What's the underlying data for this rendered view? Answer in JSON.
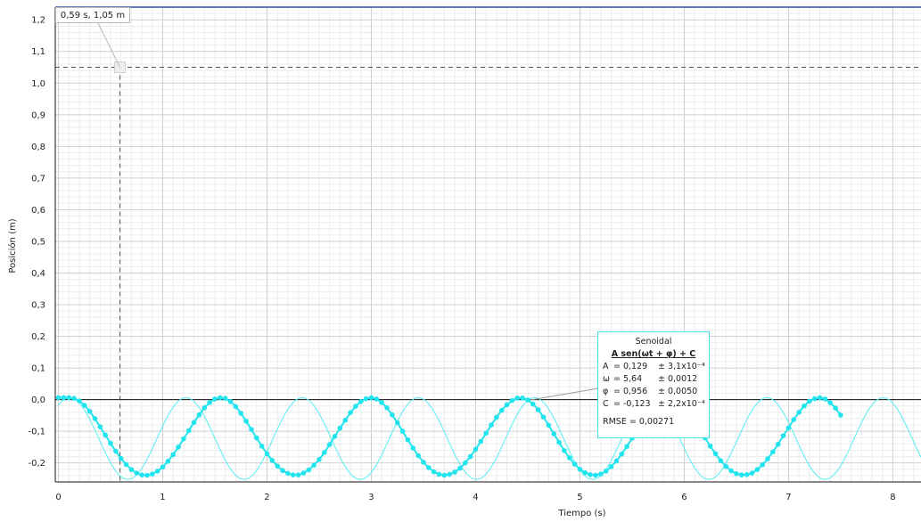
{
  "chart_data": {
    "type": "scatter",
    "xlabel": "Tiempo (s)",
    "ylabel": "Posición (m)",
    "xlim": [
      -0.03,
      8.27
    ],
    "ylim": [
      -0.26,
      1.24
    ],
    "x_ticks": [
      "0",
      "1",
      "2",
      "3",
      "4",
      "5",
      "6",
      "7",
      "8"
    ],
    "y_ticks": [
      "1,2",
      "1,1",
      "1,0",
      "0,9",
      "0,8",
      "0,7",
      "0,6",
      "0,5",
      "0,4",
      "0,3",
      "0,2",
      "0,1",
      "0,0",
      "-0,1",
      "-0,2"
    ],
    "grid": true,
    "colors": {
      "series": "#22e4ee",
      "fit_line": "#55eef4",
      "grid_major": "#cfcfcf",
      "grid_minor": "#ececec",
      "crosshair": "#555555"
    },
    "series": [
      {
        "x_start": 0.0,
        "x_step": 0.05,
        "values": [
          0.006,
          0.006,
          0.006,
          0.004,
          -0.004,
          -0.018,
          -0.037,
          -0.06,
          -0.086,
          -0.112,
          -0.138,
          -0.163,
          -0.186,
          -0.205,
          -0.221,
          -0.232,
          -0.238,
          -0.239,
          -0.235,
          -0.226,
          -0.213,
          -0.195,
          -0.174,
          -0.15,
          -0.124,
          -0.098,
          -0.072,
          -0.048,
          -0.026,
          -0.009,
          0.002,
          0.006,
          0.004,
          -0.006,
          -0.022,
          -0.043,
          -0.068,
          -0.094,
          -0.121,
          -0.147,
          -0.171,
          -0.192,
          -0.21,
          -0.224,
          -0.233,
          -0.238,
          -0.238,
          -0.232,
          -0.222,
          -0.207,
          -0.189,
          -0.167,
          -0.142,
          -0.116,
          -0.09,
          -0.065,
          -0.041,
          -0.021,
          -0.006,
          0.003,
          0.006,
          0.002,
          -0.009,
          -0.026,
          -0.048,
          -0.073,
          -0.1,
          -0.127,
          -0.153,
          -0.177,
          -0.198,
          -0.215,
          -0.228,
          -0.236,
          -0.239,
          -0.236,
          -0.229,
          -0.217,
          -0.2,
          -0.18,
          -0.157,
          -0.132,
          -0.106,
          -0.08,
          -0.056,
          -0.034,
          -0.016,
          -0.003,
          0.005,
          0.005,
          -0.001,
          -0.014,
          -0.032,
          -0.055,
          -0.081,
          -0.108,
          -0.135,
          -0.161,
          -0.184,
          -0.204,
          -0.22,
          -0.231,
          -0.237,
          -0.239,
          -0.235,
          -0.226,
          -0.212,
          -0.194,
          -0.172,
          -0.148,
          -0.122,
          -0.096,
          -0.07,
          -0.046,
          -0.025,
          -0.009,
          0.002,
          0.006,
          0.004,
          -0.006,
          -0.022,
          -0.043,
          -0.067,
          -0.094,
          -0.121,
          -0.147,
          -0.171,
          -0.193,
          -0.211,
          -0.225,
          -0.234,
          -0.238,
          -0.237,
          -0.232,
          -0.221,
          -0.206,
          -0.187,
          -0.165,
          -0.141,
          -0.114,
          -0.089,
          -0.063,
          -0.04,
          -0.02,
          -0.005,
          0.003,
          0.006,
          0.002,
          -0.01,
          -0.027,
          -0.049
        ]
      }
    ],
    "fit": {
      "title": "Senoidal",
      "equation": "A sen(ωt + φ) + C",
      "params": [
        {
          "symbol": "A",
          "value": "= 0,129",
          "error": "± 3,1x10⁻⁴"
        },
        {
          "symbol": "ω",
          "value": "= 5,64",
          "error": "± 0,0012"
        },
        {
          "symbol": "φ",
          "value": "= 0,956",
          "error": "± 0,0050"
        },
        {
          "symbol": "C",
          "value": "= -0,123",
          "error": "± 2,2x10⁻⁴"
        }
      ],
      "rmse": "RMSE = 0,00271",
      "A": 0.129,
      "omega": 5.64,
      "phi": 0.956,
      "C": -0.123,
      "x_range": [
        0.0,
        8.27
      ]
    },
    "crosshair": {
      "x": 0.59,
      "y": 1.05,
      "label": "0,59 s, 1,05 m"
    }
  }
}
